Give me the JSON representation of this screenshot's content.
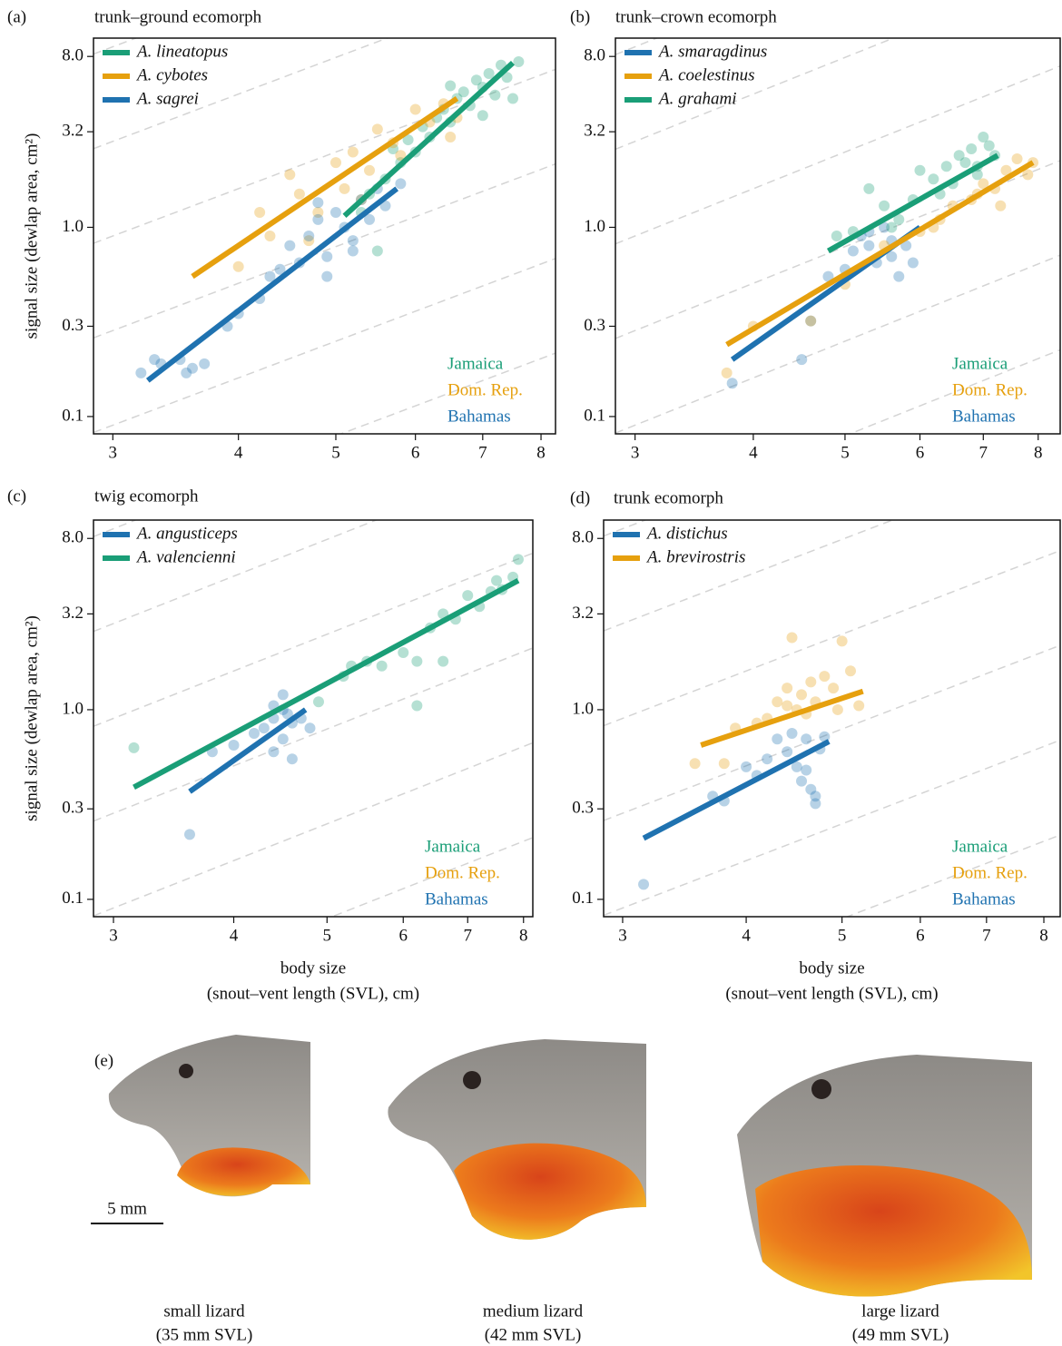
{
  "chart_data": [
    {
      "type": "scatter",
      "panel": "(a)",
      "title": "trunk–ground ecomorph",
      "ylabel": "signal size (dewlap area, cm²)",
      "xscale": "log",
      "yscale": "log",
      "xlim": [
        2.87,
        8.27
      ],
      "ylim": [
        0.081,
        10
      ],
      "xticks": [
        3,
        4,
        5,
        6,
        7,
        8
      ],
      "yticks": [
        0.1,
        0.3,
        {
          "value": 1,
          "label": "1.0"
        },
        3.2,
        {
          "value": 8,
          "label": "8.0"
        }
      ],
      "legend": "upper left",
      "reference_lines": true,
      "islands": [
        {
          "name": "Jamaica",
          "color": "#1a9e77"
        },
        {
          "name": "Dom. Rep.",
          "color": "#e6a00e"
        },
        {
          "name": "Bahamas",
          "color": "#1f72b0"
        }
      ],
      "series": [
        {
          "name": "A. lineatopus",
          "color": "#1a9e77",
          "x": [
            5.3,
            5.5,
            5.4,
            5.6,
            5.7,
            5.8,
            5.9,
            6.0,
            6.1,
            6.2,
            6.3,
            6.4,
            6.5,
            6.6,
            6.7,
            6.8,
            6.9,
            7.0,
            7.1,
            7.2,
            7.3,
            7.4,
            7.5,
            7.6,
            6.5,
            7.0
          ],
          "values": [
            1.2,
            0.75,
            1.5,
            1.8,
            2.6,
            2.2,
            2.9,
            2.5,
            3.4,
            3.0,
            3.8,
            4.2,
            3.6,
            4.8,
            5.2,
            4.4,
            6.0,
            5.5,
            6.5,
            5.0,
            7.2,
            6.2,
            4.8,
            7.5,
            5.6,
            3.9
          ],
          "fit_x": [
            5.1,
            7.5
          ],
          "fit_values": [
            1.15,
            7.4
          ]
        },
        {
          "name": "A. cybotes",
          "color": "#e6a00e",
          "x": [
            4.0,
            4.3,
            4.5,
            4.6,
            4.8,
            5.0,
            5.1,
            5.2,
            5.4,
            5.5,
            5.7,
            5.8,
            6.0,
            6.2,
            6.4,
            6.5,
            4.7,
            5.3,
            6.6,
            4.2
          ],
          "values": [
            0.62,
            0.9,
            1.9,
            1.5,
            1.2,
            2.2,
            1.6,
            2.5,
            2.0,
            3.3,
            2.8,
            2.4,
            4.2,
            3.6,
            4.5,
            3.0,
            0.85,
            1.4,
            3.8,
            1.2
          ],
          "fit_x": [
            3.6,
            6.6
          ],
          "fit_values": [
            0.55,
            4.8
          ]
        },
        {
          "name": "A. sagrei",
          "color": "#1f72b0",
          "x": [
            3.2,
            3.3,
            3.35,
            3.5,
            3.55,
            3.6,
            3.7,
            3.9,
            4.0,
            4.2,
            4.3,
            4.4,
            4.5,
            4.6,
            4.7,
            4.8,
            4.9,
            5.0,
            5.1,
            5.2,
            5.3,
            5.4,
            5.5,
            5.6,
            5.8,
            4.9,
            5.2,
            4.8
          ],
          "values": [
            0.17,
            0.2,
            0.19,
            0.2,
            0.17,
            0.18,
            0.19,
            0.3,
            0.35,
            0.42,
            0.55,
            0.6,
            0.8,
            0.65,
            0.9,
            1.1,
            0.7,
            1.2,
            1.0,
            0.85,
            1.4,
            1.1,
            1.6,
            1.3,
            1.7,
            0.55,
            0.75,
            1.35
          ],
          "fit_x": [
            3.25,
            5.75
          ],
          "fit_values": [
            0.155,
            1.6
          ]
        }
      ]
    },
    {
      "type": "scatter",
      "panel": "(b)",
      "title": "trunk–crown ecomorph",
      "xscale": "log",
      "yscale": "log",
      "xlim": [
        2.86,
        8.44
      ],
      "ylim": [
        0.081,
        10
      ],
      "xticks": [
        3,
        4,
        5,
        6,
        7,
        8
      ],
      "yticks": [
        0.1,
        0.3,
        {
          "value": 1,
          "label": "1.0"
        },
        3.2,
        {
          "value": 8,
          "label": "8.0"
        }
      ],
      "legend": "upper left",
      "reference_lines": true,
      "islands": [
        {
          "name": "Jamaica",
          "color": "#1a9e77"
        },
        {
          "name": "Dom. Rep.",
          "color": "#e6a00e"
        },
        {
          "name": "Bahamas",
          "color": "#1f72b0"
        }
      ],
      "series": [
        {
          "name": "A. smaragdinus",
          "color": "#1f72b0",
          "x": [
            3.8,
            4.5,
            4.6,
            4.8,
            5.0,
            5.1,
            5.2,
            5.3,
            5.4,
            5.5,
            5.6,
            5.7,
            5.8,
            5.9,
            5.3,
            5.6
          ],
          "values": [
            0.15,
            0.2,
            0.32,
            0.55,
            0.6,
            0.75,
            0.9,
            0.8,
            0.65,
            1.0,
            0.7,
            0.55,
            0.8,
            0.65,
            0.95,
            0.85
          ],
          "fit_x": [
            3.8,
            6.0
          ],
          "fit_values": [
            0.2,
            1.0
          ]
        },
        {
          "name": "A. coelestinus",
          "color": "#e6a00e",
          "x": [
            3.75,
            4.0,
            4.6,
            5.0,
            5.5,
            6.0,
            6.3,
            6.5,
            6.8,
            7.0,
            7.2,
            7.4,
            7.6,
            7.8,
            7.9,
            7.3,
            6.9,
            6.2
          ],
          "values": [
            0.17,
            0.3,
            0.32,
            0.5,
            0.8,
            0.95,
            1.1,
            1.3,
            1.4,
            1.7,
            1.6,
            2.0,
            2.3,
            1.9,
            2.2,
            1.3,
            1.5,
            1.0
          ],
          "fit_x": [
            3.75,
            7.9
          ],
          "fit_values": [
            0.24,
            2.2
          ]
        },
        {
          "name": "A. grahami",
          "color": "#1a9e77",
          "x": [
            4.9,
            5.1,
            5.3,
            5.5,
            5.7,
            5.9,
            6.0,
            6.2,
            6.4,
            6.5,
            6.6,
            6.7,
            6.8,
            6.9,
            7.0,
            7.1,
            7.2,
            5.6,
            6.3,
            6.9
          ],
          "values": [
            0.9,
            0.95,
            1.6,
            1.3,
            1.1,
            1.4,
            2.0,
            1.8,
            2.1,
            1.7,
            2.4,
            2.2,
            2.6,
            2.1,
            3.0,
            2.7,
            2.4,
            1.0,
            1.5,
            1.9
          ],
          "fit_x": [
            4.8,
            7.25
          ],
          "fit_values": [
            0.75,
            2.4
          ]
        }
      ]
    },
    {
      "type": "scatter",
      "panel": "(c)",
      "title": "twig ecomorph",
      "ylabel": "signal size (dewlap area, cm²)",
      "xlabel": [
        "body size",
        "(snout–vent length (SVL), cm)"
      ],
      "xscale": "log",
      "yscale": "log",
      "xlim": [
        2.86,
        8.18
      ],
      "ylim": [
        0.081,
        10
      ],
      "xticks": [
        3,
        4,
        5,
        6,
        7,
        8
      ],
      "yticks": [
        0.1,
        0.3,
        {
          "value": 1,
          "label": "1.0"
        },
        3.2,
        {
          "value": 8,
          "label": "8.0"
        }
      ],
      "legend": "upper left",
      "reference_lines": true,
      "islands": [
        {
          "name": "Jamaica",
          "color": "#1a9e77"
        },
        {
          "name": "Dom. Rep.",
          "color": "#e6a00e"
        },
        {
          "name": "Bahamas",
          "color": "#1f72b0"
        }
      ],
      "series": [
        {
          "name": "A. angusticeps",
          "color": "#1f72b0",
          "x": [
            3.6,
            3.8,
            4.0,
            4.2,
            4.3,
            4.4,
            4.4,
            4.5,
            4.5,
            4.5,
            4.6,
            4.6,
            4.7,
            4.8,
            4.4,
            4.55
          ],
          "values": [
            0.22,
            0.6,
            0.65,
            0.75,
            0.8,
            0.9,
            0.6,
            1.0,
            0.7,
            1.2,
            0.55,
            0.85,
            0.9,
            0.8,
            1.05,
            0.95
          ],
          "fit_x": [
            3.6,
            4.75
          ],
          "fit_values": [
            0.37,
            1.0
          ]
        },
        {
          "name": "A. valencienni",
          "color": "#1a9e77",
          "x": [
            3.15,
            4.9,
            5.3,
            5.5,
            5.7,
            6.0,
            6.2,
            6.4,
            6.6,
            6.6,
            6.8,
            7.0,
            7.2,
            7.4,
            7.5,
            7.6,
            7.8,
            7.9,
            6.2,
            5.2
          ],
          "values": [
            0.63,
            1.1,
            1.7,
            1.8,
            1.7,
            2.0,
            1.05,
            2.7,
            3.2,
            1.8,
            3.0,
            4.0,
            3.5,
            4.2,
            4.8,
            4.3,
            5.0,
            6.2,
            1.8,
            1.5
          ],
          "fit_x": [
            3.15,
            7.9
          ],
          "fit_values": [
            0.39,
            4.8
          ]
        }
      ]
    },
    {
      "type": "scatter",
      "panel": "(d)",
      "title": "trunk ecomorph",
      "xlabel": [
        "body size",
        "(snout–vent length (SVL), cm)"
      ],
      "xscale": "log",
      "yscale": "log",
      "xlim": [
        2.87,
        8.31
      ],
      "ylim": [
        0.081,
        10
      ],
      "xticks": [
        3,
        4,
        5,
        6,
        7,
        8
      ],
      "yticks": [
        0.1,
        0.3,
        {
          "value": 1,
          "label": "1.0"
        },
        3.2,
        {
          "value": 8,
          "label": "8.0"
        }
      ],
      "legend": "upper left",
      "reference_lines": true,
      "islands": [
        {
          "name": "Jamaica",
          "color": "#1a9e77"
        },
        {
          "name": "Dom. Rep.",
          "color": "#e6a00e"
        },
        {
          "name": "Bahamas",
          "color": "#1f72b0"
        }
      ],
      "series": [
        {
          "name": "A. distichus",
          "color": "#1f72b0",
          "x": [
            3.15,
            3.7,
            3.8,
            4.0,
            4.1,
            4.2,
            4.3,
            4.4,
            4.45,
            4.5,
            4.55,
            4.6,
            4.65,
            4.7,
            4.75,
            4.8,
            4.6,
            4.7
          ],
          "values": [
            0.12,
            0.35,
            0.33,
            0.5,
            0.45,
            0.55,
            0.7,
            0.6,
            0.75,
            0.5,
            0.42,
            0.7,
            0.38,
            0.32,
            0.62,
            0.72,
            0.48,
            0.35
          ],
          "fit_x": [
            3.15,
            4.85
          ],
          "fit_values": [
            0.21,
            0.68
          ]
        },
        {
          "name": "A. brevirostris",
          "color": "#e6a00e",
          "x": [
            3.55,
            3.8,
            3.9,
            4.1,
            4.2,
            4.3,
            4.4,
            4.45,
            4.5,
            4.55,
            4.6,
            4.65,
            4.7,
            4.8,
            4.9,
            5.0,
            5.1,
            5.2,
            4.95,
            4.4
          ],
          "values": [
            0.52,
            0.52,
            0.8,
            0.85,
            0.9,
            1.1,
            1.3,
            2.4,
            1.0,
            1.2,
            0.95,
            1.4,
            1.1,
            1.5,
            1.3,
            2.3,
            1.6,
            1.05,
            1.0,
            1.05
          ],
          "fit_x": [
            3.6,
            5.25
          ],
          "fit_values": [
            0.65,
            1.25
          ]
        }
      ]
    }
  ],
  "photos": {
    "panel": "(e)",
    "scale_bar": "5 mm",
    "lizards": [
      {
        "name": "small lizard",
        "size": "(35 mm SVL)"
      },
      {
        "name": "medium lizard",
        "size": "(42 mm SVL)"
      },
      {
        "name": "large lizard",
        "size": "(49 mm SVL)"
      }
    ]
  }
}
